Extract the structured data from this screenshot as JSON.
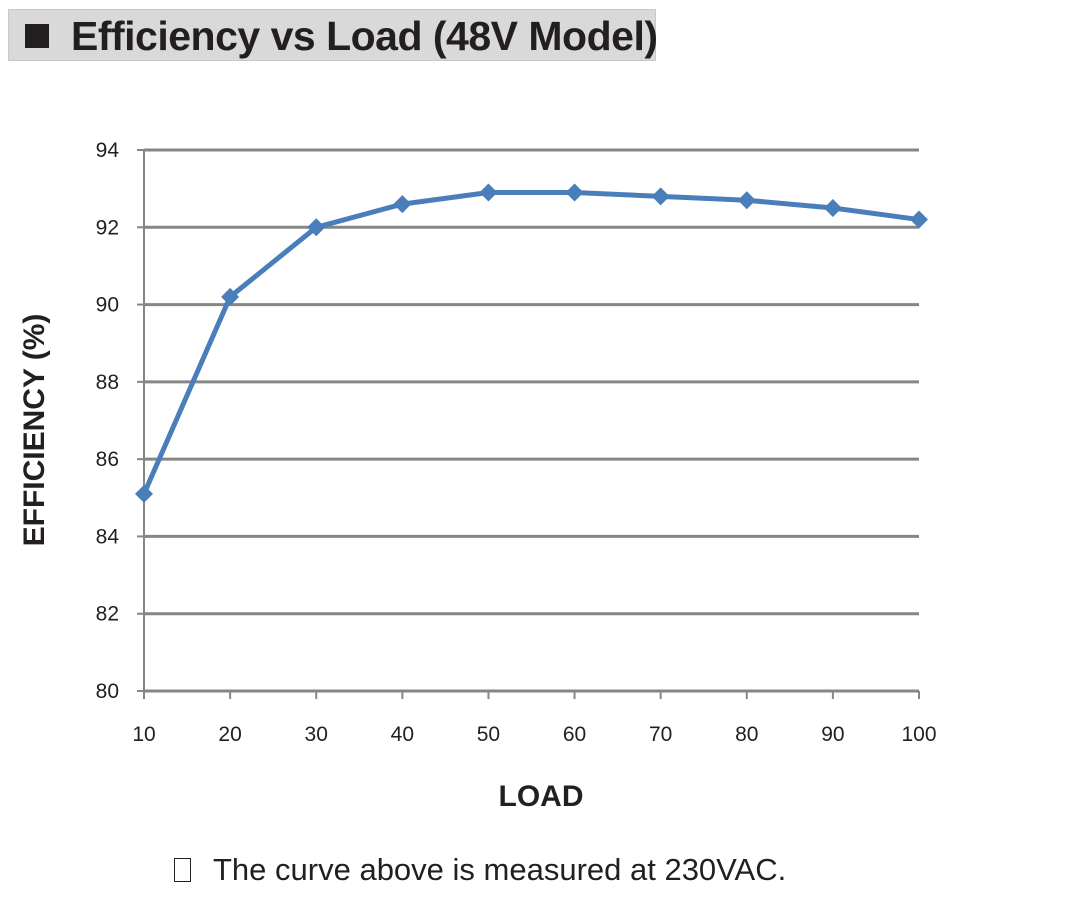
{
  "header": {
    "title": "Efficiency vs Load (48V Model)"
  },
  "note": {
    "text": "The curve above is measured at 230VAC."
  },
  "colors": {
    "series": "#4a7ebb",
    "grid": "#868686",
    "banner": "#d9d9d9"
  },
  "chart_data": {
    "type": "line",
    "title": "",
    "xlabel": "LOAD",
    "ylabel": "EFFICIENCY (%)",
    "x": [
      10,
      20,
      30,
      40,
      50,
      60,
      70,
      80,
      90,
      100
    ],
    "xticks": [
      "10",
      "20",
      "30",
      "40",
      "50",
      "60",
      "70",
      "80",
      "90",
      "100"
    ],
    "yticks": [
      "80",
      "82",
      "84",
      "86",
      "88",
      "90",
      "92",
      "94"
    ],
    "ylim": [
      80,
      94
    ],
    "grid": true,
    "marker": "diamond",
    "series": [
      {
        "values": [
          85.1,
          90.2,
          92.0,
          92.6,
          92.9,
          92.9,
          92.8,
          92.7,
          92.5,
          92.2
        ]
      }
    ]
  }
}
